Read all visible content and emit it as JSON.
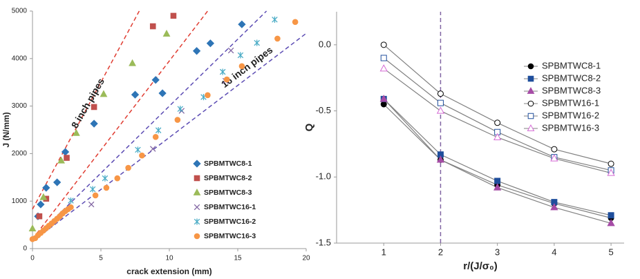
{
  "chart_data": [
    {
      "type": "scatter",
      "x_label": "crack extension (mm)",
      "y_label": "J (N/mm)",
      "xlim": [
        0,
        20
      ],
      "xticks": [
        0,
        5,
        10,
        15,
        20
      ],
      "ylim": [
        0,
        5000
      ],
      "yticks": [
        0,
        1000,
        2000,
        3000,
        4000,
        5000
      ],
      "series": [
        {
          "name": "SPBMTWC8-1",
          "color": "#2e75b6",
          "marker": "diamond",
          "filled": true,
          "x": [
            0.4,
            0.6,
            1.0,
            1.8,
            2.4,
            4.5,
            7.5,
            9.0,
            9.5,
            12.0,
            13.0,
            15.3
          ],
          "values": [
            680,
            930,
            1280,
            1395,
            2035,
            2630,
            3240,
            3550,
            3270,
            4160,
            4320,
            4720
          ]
        },
        {
          "name": "SPBMTWC8-2",
          "color": "#c0504d",
          "marker": "square",
          "filled": true,
          "x": [
            0.5,
            1.0,
            2.5,
            4.5,
            8.8,
            10.3
          ],
          "values": [
            680,
            1050,
            1910,
            2980,
            4680,
            4900
          ]
        },
        {
          "name": "SPBMTWC8-3",
          "color": "#9bbb59",
          "marker": "triangle",
          "filled": true,
          "x": [
            0,
            0.8,
            2.1,
            3.2,
            5.2,
            7.3,
            9.8
          ],
          "values": [
            420,
            1080,
            1850,
            2430,
            3250,
            3900,
            4520
          ]
        },
        {
          "name": "SPBMTWC16-1",
          "color": "#8064a2",
          "marker": "x",
          "filled": false,
          "x": [
            4.3,
            8.8,
            10.9,
            14.1,
            14.5
          ],
          "values": [
            930,
            2100,
            2900,
            3530,
            4170
          ]
        },
        {
          "name": "SPBMTWC16-2",
          "color": "#4bacc6",
          "marker": "asterisk",
          "filled": false,
          "x": [
            2.8,
            4.4,
            5.3,
            7.7,
            9.2,
            10.8,
            12.5,
            13.9,
            15.2,
            16.4,
            17.7
          ],
          "values": [
            1010,
            1250,
            1480,
            2080,
            2490,
            2940,
            3190,
            3720,
            4070,
            4330,
            4820
          ]
        },
        {
          "name": "SPBMTWC16-3",
          "color": "#f79646",
          "marker": "circle",
          "filled": true,
          "x": [
            0,
            0.2,
            0.4,
            0.6,
            0.8,
            1.0,
            1.2,
            1.4,
            1.6,
            1.8,
            2.0,
            2.2,
            2.4,
            2.6,
            2.8,
            4.6,
            5.4,
            6.2,
            7.0,
            8.0,
            9.0,
            10.6,
            12.8,
            14.2,
            15.3,
            17.9,
            19.2
          ],
          "values": [
            200,
            220,
            280,
            330,
            380,
            430,
            480,
            530,
            580,
            630,
            680,
            740,
            790,
            830,
            870,
            1120,
            1280,
            1480,
            1700,
            1960,
            2350,
            2710,
            3230,
            3560,
            3840,
            4420,
            4770
          ]
        }
      ],
      "reference_lines": [
        {
          "color": "#e03c31",
          "x": [
            0,
            7.8
          ],
          "y": [
            830,
            5000
          ]
        },
        {
          "color": "#e03c31",
          "x": [
            0,
            12.8
          ],
          "y": [
            200,
            5000
          ]
        },
        {
          "color": "#5b4bb3",
          "x": [
            0,
            17.1
          ],
          "y": [
            180,
            5000
          ]
        },
        {
          "color": "#5b4bb3",
          "x": [
            0,
            20
          ],
          "y": [
            150,
            4530
          ]
        }
      ],
      "annotations": [
        {
          "text": "8 inch pipes",
          "color": "#d9453b"
        },
        {
          "text": "16 inch pipes",
          "color": "#6a4bc0"
        }
      ]
    },
    {
      "type": "line",
      "x_label": "r/(J/σ₀)",
      "y_label": "Q",
      "line_color": "#808080",
      "xlim": [
        0.17,
        5.23
      ],
      "xticks": [
        1,
        2,
        3,
        4,
        5
      ],
      "ylim": [
        -1.5,
        0.25
      ],
      "yticks": [
        -1.5,
        {
          "value": -1,
          "label": "-1.0"
        },
        -0.5,
        {
          "value": 0,
          "label": "0.0"
        }
      ],
      "x": [
        1,
        2,
        3,
        4,
        5
      ],
      "series": [
        {
          "name": "SPBMTWC8-1",
          "color": "#000000",
          "marker": "circle",
          "filled": true,
          "values": [
            -0.45,
            -0.87,
            -1.06,
            -1.2,
            -1.31
          ]
        },
        {
          "name": "SPBMTWC8-2",
          "color": "#1f4e9c",
          "marker": "square",
          "filled": true,
          "values": [
            -0.41,
            -0.83,
            -1.03,
            -1.19,
            -1.29
          ]
        },
        {
          "name": "SPBMTWC8-3",
          "color": "#a64ca6",
          "marker": "triangle",
          "filled": true,
          "values": [
            -0.41,
            -0.87,
            -1.08,
            -1.23,
            -1.35
          ]
        },
        {
          "name": "SPBMTW16-1",
          "color": "#000000",
          "marker": "circle",
          "filled": false,
          "values": [
            0,
            -0.37,
            -0.59,
            -0.79,
            -0.9
          ]
        },
        {
          "name": "SPBMTW16-2",
          "color": "#1f4e9c",
          "marker": "square",
          "filled": false,
          "values": [
            -0.1,
            -0.44,
            -0.66,
            -0.85,
            -0.95
          ]
        },
        {
          "name": "SPBMTW16-3",
          "color": "#d46ad4",
          "marker": "triangle",
          "filled": false,
          "values": [
            -0.18,
            -0.5,
            -0.7,
            -0.86,
            -0.97
          ]
        }
      ],
      "reference_lines": [
        {
          "color": "#8064a2",
          "x": [
            2,
            2
          ],
          "y": [
            -1.5,
            0.25
          ]
        }
      ]
    }
  ]
}
